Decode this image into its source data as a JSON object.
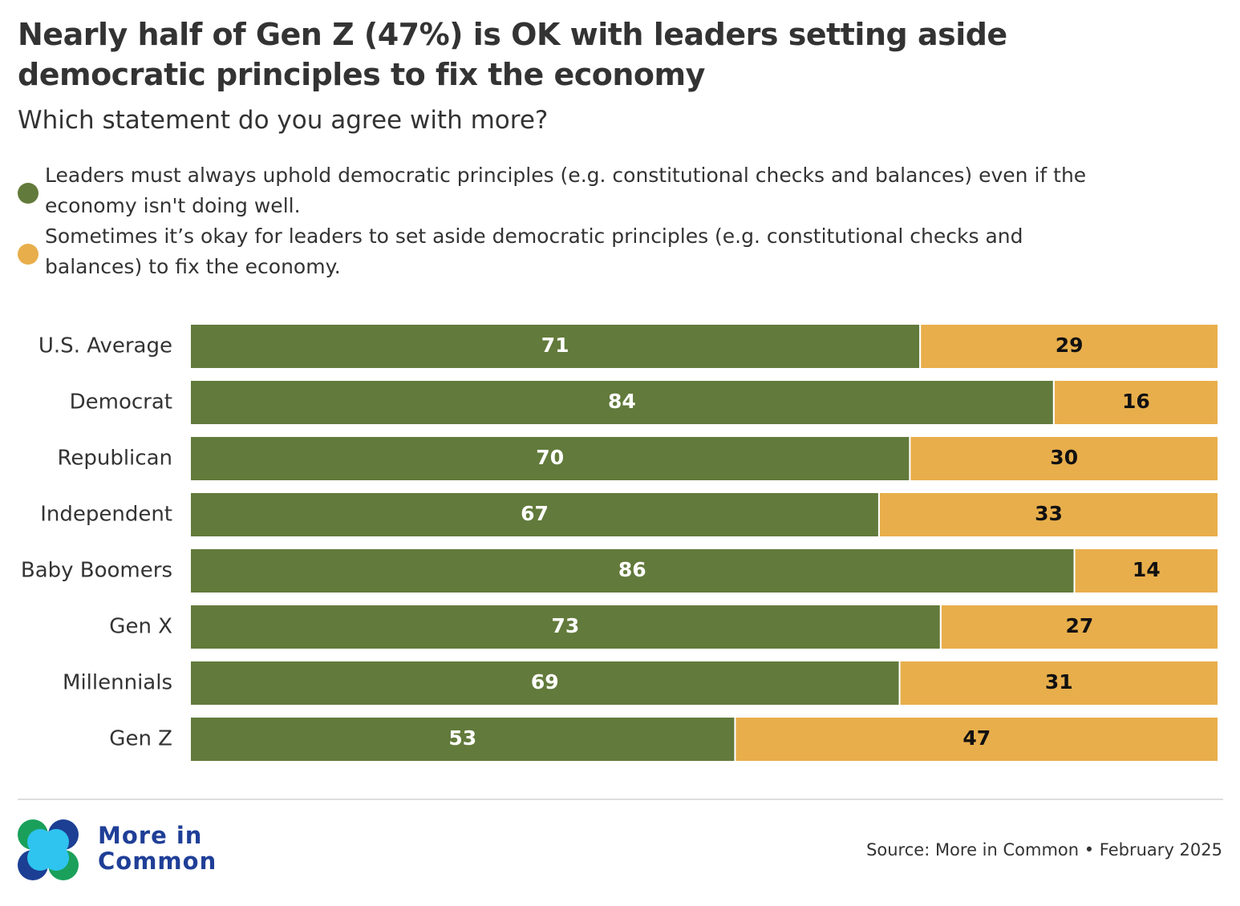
{
  "chart_data": {
    "type": "bar",
    "orientation": "horizontal",
    "stacked": true,
    "title": "Nearly half of Gen Z (47%) is OK with leaders setting aside democratic principles to fix the economy",
    "subtitle": "Which statement do you agree with more?",
    "categories": [
      "U.S. Average",
      "Democrat",
      "Republican",
      "Independent",
      "Baby Boomers",
      "Gen X",
      "Millennials",
      "Gen Z"
    ],
    "series": [
      {
        "name": "Leaders must always uphold democratic principles (e.g. constitutional checks and balances) even if the economy isn't doing well.",
        "color": "#627a3b",
        "label_color": "#ffffff",
        "values": [
          71,
          84,
          70,
          67,
          86,
          73,
          69,
          53
        ]
      },
      {
        "name": "Sometimes it’s okay for leaders to set aside democratic principles (e.g. constitutional checks and balances) to fix the economy.",
        "color": "#e8ae4b",
        "label_color": "#111111",
        "values": [
          29,
          16,
          30,
          33,
          14,
          27,
          31,
          47
        ]
      }
    ],
    "xlim": [
      0,
      100
    ]
  },
  "footer": {
    "logo": "More in Common",
    "source": "Source: More in Common • February 2025"
  }
}
